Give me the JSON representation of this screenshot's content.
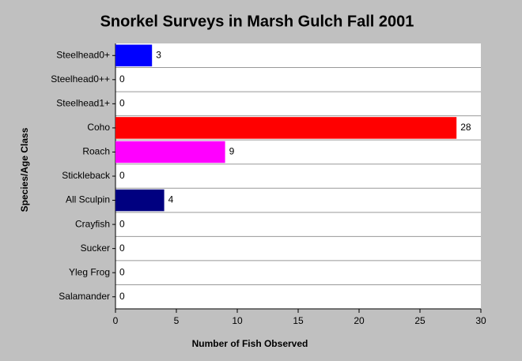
{
  "chart_data": {
    "type": "hbar",
    "title": "Snorkel Surveys in Marsh Gulch Fall 2001",
    "x_label": "Number of Fish Observed",
    "y_label": "Species/Age Class",
    "categories": [
      "Steelhead0+",
      "Steelhead0++",
      "Steelhead1+",
      "Coho",
      "Roach",
      "Stickleback",
      "All Sculpin",
      "Crayfish",
      "Sucker",
      "Yleg Frog",
      "Salamander"
    ],
    "values": [
      3,
      0,
      0,
      28,
      9,
      0,
      4,
      0,
      0,
      0,
      0
    ],
    "colors": [
      "#0000ff",
      null,
      null,
      "#ff0000",
      "#ff00ff",
      null,
      "#000080",
      null,
      null,
      null,
      null
    ],
    "xlim": [
      0,
      30
    ],
    "xticks": [
      0,
      5,
      10,
      15,
      20,
      25,
      30
    ],
    "grid": true
  }
}
